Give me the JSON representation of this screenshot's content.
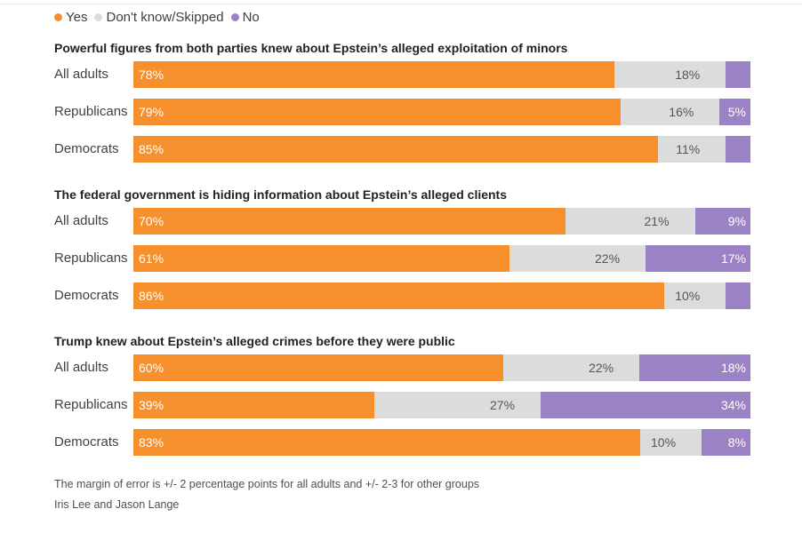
{
  "colors": {
    "yes": "#f5902d",
    "dontknow": "#dcdcdc",
    "no": "#9a82c4",
    "label_on_color": "#ffffff",
    "label_on_gray": "#555555"
  },
  "chart_data": {
    "type": "bar",
    "orientation": "horizontal",
    "stacked": true,
    "unit": "%",
    "legend": [
      {
        "key": "yes",
        "label": "Yes"
      },
      {
        "key": "dontknow",
        "label": "Don't know/Skipped"
      },
      {
        "key": "no",
        "label": "No"
      }
    ],
    "legend_position": "top-left",
    "xlim": [
      0,
      100
    ],
    "groups": [
      {
        "title": "Powerful figures from both parties knew about Epstein’s alleged exploitation of minors",
        "rows": [
          {
            "label": "All adults",
            "yes": 78,
            "dontknow": 18,
            "no": 4,
            "labels": {
              "yes": "78%",
              "dontknow": "18%",
              "no": ""
            }
          },
          {
            "label": "Republicans",
            "yes": 79,
            "dontknow": 16,
            "no": 5,
            "labels": {
              "yes": "79%",
              "dontknow": "16%",
              "no": "5%"
            }
          },
          {
            "label": "Democrats",
            "yes": 85,
            "dontknow": 11,
            "no": 4,
            "labels": {
              "yes": "85%",
              "dontknow": "11%",
              "no": ""
            }
          }
        ]
      },
      {
        "title": "The federal government is hiding information about Epstein’s alleged clients",
        "rows": [
          {
            "label": "All adults",
            "yes": 70,
            "dontknow": 21,
            "no": 9,
            "labels": {
              "yes": "70%",
              "dontknow": "21%",
              "no": "9%"
            }
          },
          {
            "label": "Republicans",
            "yes": 61,
            "dontknow": 22,
            "no": 17,
            "labels": {
              "yes": "61%",
              "dontknow": "22%",
              "no": "17%"
            }
          },
          {
            "label": "Democrats",
            "yes": 86,
            "dontknow": 10,
            "no": 4,
            "labels": {
              "yes": "86%",
              "dontknow": "10%",
              "no": ""
            }
          }
        ]
      },
      {
        "title": "Trump knew about Epstein’s alleged crimes before they were public",
        "rows": [
          {
            "label": "All adults",
            "yes": 60,
            "dontknow": 22,
            "no": 18,
            "labels": {
              "yes": "60%",
              "dontknow": "22%",
              "no": "18%"
            }
          },
          {
            "label": "Republicans",
            "yes": 39,
            "dontknow": 27,
            "no": 34,
            "labels": {
              "yes": "39%",
              "dontknow": "27%",
              "no": "34%"
            }
          },
          {
            "label": "Democrats",
            "yes": 83,
            "dontknow": 10,
            "no": 8,
            "labels": {
              "yes": "83%",
              "dontknow": "10%",
              "no": "8%"
            }
          }
        ]
      }
    ]
  },
  "footer": {
    "note": "The margin of error is +/- 2 percentage points for all adults and +/- 2-3 for other groups",
    "credit": "Iris Lee and Jason Lange"
  }
}
